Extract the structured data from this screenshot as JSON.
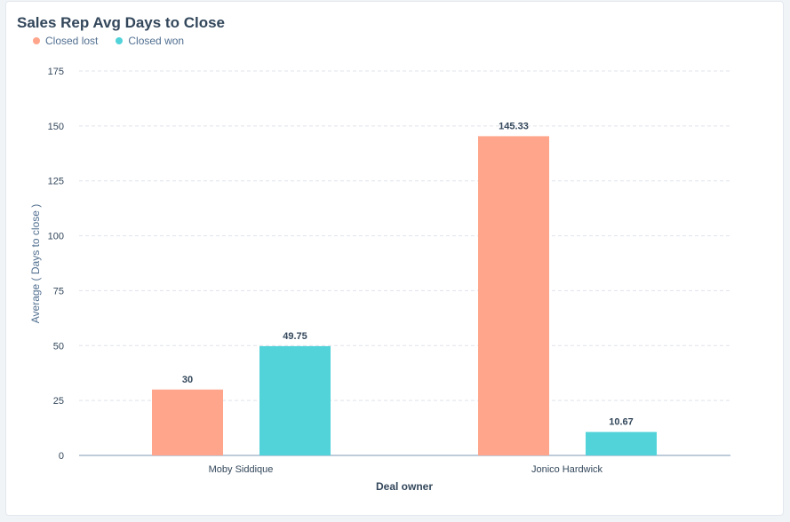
{
  "chart_data": {
    "type": "bar",
    "title": "Sales Rep Avg Days to Close",
    "xlabel": "Deal owner",
    "ylabel": "Average ( Days to close )",
    "categories": [
      "Moby Siddique",
      "Jonico Hardwick"
    ],
    "series": [
      {
        "name": "Closed lost",
        "color": "#ffa58b",
        "values": [
          30,
          145.33
        ],
        "labels": [
          "30",
          "145.33"
        ]
      },
      {
        "name": "Closed won",
        "color": "#51d3d9",
        "values": [
          49.75,
          10.67
        ],
        "labels": [
          "49.75",
          "10.67"
        ]
      }
    ],
    "ylim": [
      0,
      175
    ],
    "yticks": [
      "0",
      "25",
      "50",
      "75",
      "100",
      "125",
      "150",
      "175"
    ],
    "grid": true,
    "legend": "top-left"
  }
}
